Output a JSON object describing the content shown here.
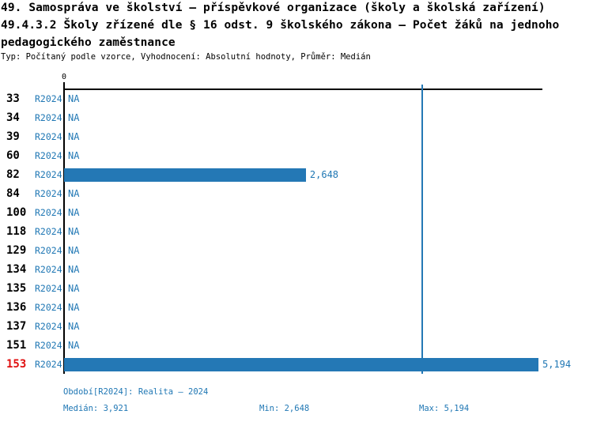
{
  "colors": {
    "bar": "#2478b5",
    "blue_text": "#1f77b4",
    "highlight_red": "#e01010",
    "axis_black": "#000000"
  },
  "chart_data": {
    "type": "bar",
    "orientation": "horizontal",
    "title_lines": [
      "49. Samospráva ve školství – příspěvkové organizace (školy a školská zařízení)",
      "49.4.3.2 Školy zřízené dle § 16 odst. 9 školského zákona – Počet žáků na jednoho",
      "pedagogického zaměstnance"
    ],
    "meta_line": "Typ: Počítaný podle vzorce, Vyhodnocení: Absolutní hodnoty, Průměr: Medián",
    "zero_label": "0",
    "categories": [
      "33",
      "34",
      "39",
      "60",
      "82",
      "84",
      "100",
      "118",
      "129",
      "134",
      "135",
      "136",
      "137",
      "151",
      "153"
    ],
    "series": [
      {
        "name": "R2024",
        "values": [
          null,
          null,
          null,
          null,
          2648,
          null,
          null,
          null,
          null,
          null,
          null,
          null,
          null,
          null,
          5194
        ]
      }
    ],
    "value_labels": [
      "NA",
      "NA",
      "NA",
      "NA",
      "2,648",
      "NA",
      "NA",
      "NA",
      "NA",
      "NA",
      "NA",
      "NA",
      "NA",
      "NA",
      "5,194"
    ],
    "highlight_category": "153",
    "xlim": [
      0,
      5194
    ],
    "grid": false,
    "median_line": {
      "value": 3921
    },
    "stats": {
      "median": 3921,
      "min": 2648,
      "max": 5194
    }
  },
  "footer": {
    "period_label": "Období[R2024]: Realita – 2024",
    "median_label": "Medián: 3,921",
    "min_label": "Min: 2,648",
    "max_label": "Max: 5,194"
  }
}
